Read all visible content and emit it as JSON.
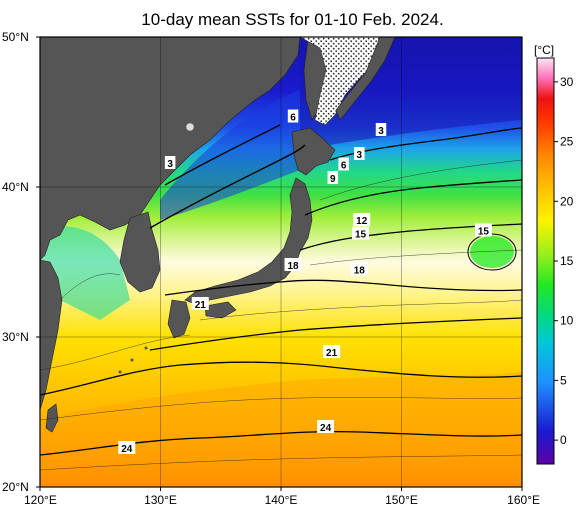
{
  "title": "10-day mean SSTs for 01-10 Feb. 2024.",
  "map": {
    "lon_range": [
      120,
      160
    ],
    "lat_range": [
      20,
      50
    ],
    "lon_ticks": [
      "120°E",
      "130°E",
      "140°E",
      "150°E",
      "160°E"
    ],
    "lat_ticks": [
      "50°N",
      "40°N",
      "30°N",
      "20°N"
    ],
    "land_color": "#555555",
    "ice_region": "hatched"
  },
  "colorbar": {
    "unit": "[°C]",
    "range": [
      -2,
      32
    ],
    "ticks": [
      "30",
      "25",
      "20",
      "15",
      "10",
      "5",
      "0"
    ],
    "colors": [
      "#5e00a8",
      "#1a1ad0",
      "#1f4fe8",
      "#1e90ff",
      "#00c8d8",
      "#00d888",
      "#22e822",
      "#7af21a",
      "#cdf50f",
      "#fff200",
      "#ffd200",
      "#ffaa00",
      "#ff7700",
      "#ff3a00",
      "#ee1111",
      "#ff55a0",
      "#ffbfe6",
      "#ffffff"
    ]
  },
  "contour_labels": [
    {
      "text": "6",
      "lon": 141.0,
      "lat": 44.7
    },
    {
      "text": "3",
      "lon": 130.8,
      "lat": 41.6
    },
    {
      "text": "3",
      "lon": 148.3,
      "lat": 43.8
    },
    {
      "text": "3",
      "lon": 146.5,
      "lat": 42.2
    },
    {
      "text": "6",
      "lon": 145.2,
      "lat": 41.5
    },
    {
      "text": "9",
      "lon": 144.3,
      "lat": 40.6
    },
    {
      "text": "12",
      "lon": 146.7,
      "lat": 37.8
    },
    {
      "text": "15",
      "lon": 146.6,
      "lat": 36.9
    },
    {
      "text": "15",
      "lon": 156.8,
      "lat": 37.1
    },
    {
      "text": "18",
      "lon": 141.0,
      "lat": 34.8
    },
    {
      "text": "18",
      "lon": 146.5,
      "lat": 34.5
    },
    {
      "text": "21",
      "lon": 133.3,
      "lat": 32.2
    },
    {
      "text": "21",
      "lon": 144.2,
      "lat": 29.0
    },
    {
      "text": "24",
      "lon": 143.7,
      "lat": 24.0
    },
    {
      "text": "24",
      "lon": 127.2,
      "lat": 22.6
    }
  ]
}
